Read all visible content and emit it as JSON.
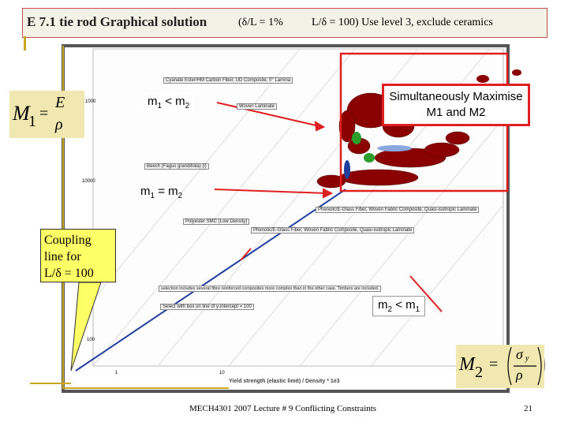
{
  "header": {
    "title": "E 7.1  tie rod Graphical solution",
    "condition_1": "(δ/L = 1%",
    "condition_2": "L/δ = 100) Use level 3, exclude ceramics"
  },
  "formula_1": {
    "symbol": "M",
    "index": "1",
    "equals": "=",
    "numerator": "E",
    "denominator": "ρ"
  },
  "formula_2": {
    "symbol": "M",
    "index": "2",
    "equals": "=",
    "numerator": "σ",
    "numerator_sub": "y",
    "denominator": "ρ"
  },
  "chart_image": {
    "labels": [
      "Cyanate Ester/HM Carbon Fiber, UD Composite, 0° Lamina",
      "Woven Laminate",
      "Beech (Fagus grandifolia) (l)",
      "Phenolic/E-Glass Fiber, Woven Fabric Composite, Quasi-isotropic Laminate",
      "Polyester SMC (Low Density)",
      "Phenolic/E-Glass Fiber, Woven Fabric Composite, Quasi-isotropic Laminate"
    ],
    "note": "selection includes several fibre reinforced composites more complex than in the other case. Timbers are included.",
    "selection": "Select with box on line of y-intercept = 100",
    "y_tick_labels": [
      "1000",
      "10000",
      "100"
    ],
    "x_tick_labels": [
      "1",
      "10"
    ],
    "x_axis_label": "Yield strength (elastic limit) / Density * 1e3"
  },
  "callouts": {
    "m1_lt_m2": [
      "m",
      "1",
      " < m",
      "2"
    ],
    "m1_eq_m2": [
      "m",
      "1",
      " = m",
      "2"
    ],
    "m2_lt_m1": [
      "m",
      "2",
      " < m",
      "1"
    ],
    "simultaneous": "Simultaneously Maximise M1 and M2",
    "coupling": [
      "Coupling",
      "line for",
      "L/δ = 100"
    ]
  },
  "footer": {
    "lecture": "MECH4301 2007 Lecture # 9 Conflicting Constraints",
    "page": "21"
  }
}
